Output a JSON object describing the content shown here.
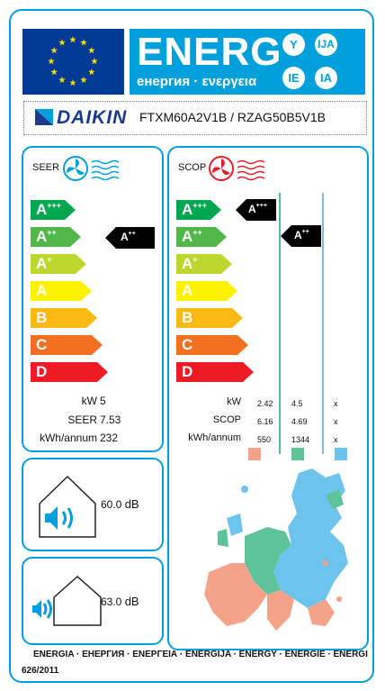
{
  "header": {
    "title": "ENERG",
    "subtitle": "енергия · ενεργεια",
    "language_codes": [
      "Y",
      "IJA",
      "IE",
      "IA"
    ]
  },
  "supplier": {
    "brand": "DAIKIN",
    "model": "FTXM60A2V1B / RZAG50B5V1B"
  },
  "classes": [
    {
      "letter": "A",
      "sup": "+++",
      "color": "#00a650"
    },
    {
      "letter": "A",
      "sup": "++",
      "color": "#50b848"
    },
    {
      "letter": "A",
      "sup": "+",
      "color": "#bed630"
    },
    {
      "letter": "A",
      "sup": "",
      "color": "#fff200"
    },
    {
      "letter": "B",
      "sup": "",
      "color": "#fdb913"
    },
    {
      "letter": "C",
      "sup": "",
      "color": "#f37021"
    },
    {
      "letter": "D",
      "sup": "",
      "color": "#ed1c24"
    }
  ],
  "cooling": {
    "label": "SEER",
    "class_letter": "A",
    "class_sup": "++",
    "rows": [
      {
        "label": "kW",
        "value": "5"
      },
      {
        "label": "SEER",
        "value": "7.53"
      },
      {
        "label": "kWh/annum",
        "value": "232"
      }
    ]
  },
  "heating": {
    "label": "SCOP",
    "class_warm_letter": "A",
    "class_warm_sup": "+++",
    "class_avg_letter": "A",
    "class_avg_sup": "++",
    "rows": [
      {
        "label": "kW",
        "values": [
          "2.42",
          "4.5",
          "x"
        ]
      },
      {
        "label": "SCOP",
        "values": [
          "6.16",
          "4.69",
          "x"
        ]
      },
      {
        "label": "kWh/annum",
        "values": [
          "550",
          "1344",
          "x"
        ]
      }
    ],
    "zone_colors": [
      "#f4a38a",
      "#5fc39a",
      "#6cc3ec"
    ]
  },
  "noise": {
    "indoor_value": "60.0",
    "indoor_unit": "dB",
    "outdoor_value": "63.0",
    "outdoor_unit": "dB"
  },
  "footer": {
    "energy_words": "ENERGIA · ЕНЕРГИЯ · ΕΝΕΡΓΕΙΑ · ENERGIJA · ENERGY · ENERGIE · ENERGI",
    "regulation": "626/2011"
  }
}
